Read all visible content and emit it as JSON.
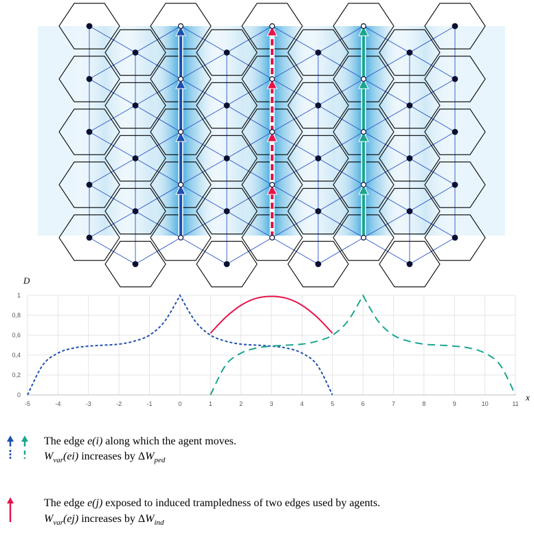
{
  "colors": {
    "blue": "#1f4fb0",
    "red": "#e8134a",
    "teal": "#1aa58f",
    "grid_line": "#2c55c8",
    "hex_line": "#000000",
    "band_light": "#d5ecf8",
    "band_mid": "#3ea8dc",
    "node": "#0b1030"
  },
  "diagram": {
    "description_icons": [
      "blue-arrow-icon",
      "teal-arrow-icon",
      "red-arrow-icon"
    ]
  },
  "chart_data": {
    "type": "line",
    "ylabel": "D",
    "xlabel": "x",
    "xlim": [
      -5,
      11
    ],
    "ylim": [
      0,
      1
    ],
    "x_ticks": [
      "-5",
      "-4",
      "-3",
      "-2",
      "-1",
      "0",
      "1",
      "2",
      "3",
      "4",
      "5",
      "6",
      "7",
      "8",
      "9",
      "10",
      "11"
    ],
    "y_ticks": [
      "0",
      "0,2",
      "0,4",
      "0,6",
      "0,8",
      "1"
    ],
    "grid": true,
    "series": [
      {
        "color": "blue",
        "style": "dotted",
        "x": [
          -5,
          -4.5,
          -4,
          -3.5,
          -3,
          -2.5,
          -2,
          -1.5,
          -1,
          -0.5,
          0,
          0.5,
          1,
          1.5,
          2,
          2.5,
          3,
          3.5,
          4,
          4.5,
          5
        ],
        "y": [
          0,
          0.3,
          0.42,
          0.47,
          0.49,
          0.5,
          0.51,
          0.54,
          0.6,
          0.74,
          1,
          0.74,
          0.6,
          0.54,
          0.51,
          0.5,
          0.49,
          0.47,
          0.42,
          0.3,
          0
        ]
      },
      {
        "color": "teal",
        "style": "dashed",
        "x": [
          1,
          1.5,
          2,
          2.5,
          3,
          3.5,
          4,
          4.5,
          5,
          5.5,
          6,
          6.5,
          7,
          7.5,
          8,
          8.5,
          9,
          9.5,
          10,
          10.5,
          11
        ],
        "y": [
          0,
          0.3,
          0.42,
          0.47,
          0.49,
          0.5,
          0.51,
          0.54,
          0.6,
          0.74,
          1,
          0.74,
          0.6,
          0.54,
          0.51,
          0.5,
          0.49,
          0.47,
          0.42,
          0.3,
          0
        ]
      },
      {
        "color": "red",
        "style": "solid",
        "x": [
          1,
          1.5,
          2,
          2.5,
          3,
          3.5,
          4,
          4.5,
          5
        ],
        "y": [
          0.62,
          0.78,
          0.9,
          0.97,
          0.99,
          0.97,
          0.9,
          0.78,
          0.62
        ]
      }
    ]
  },
  "legend": {
    "line1_pre": "The edge ",
    "line1_var": "e(i)",
    "line1_post": " along which the agent moves.",
    "line2_W": "W",
    "line2_sub": "var",
    "line2_arg": "(ei)",
    "line2_mid": " increases by Δ",
    "line2_W2": "W",
    "line2_sub2": "ped",
    "line3_pre": "The edge ",
    "line3_var": "e(j)",
    "line3_post": " exposed to induced trampledness of two edges used by agents.",
    "line4_W": "W",
    "line4_sub": "var",
    "line4_arg": "(ej)",
    "line4_mid": " increases by Δ",
    "line4_W2": "W",
    "line4_sub2": "ind"
  }
}
